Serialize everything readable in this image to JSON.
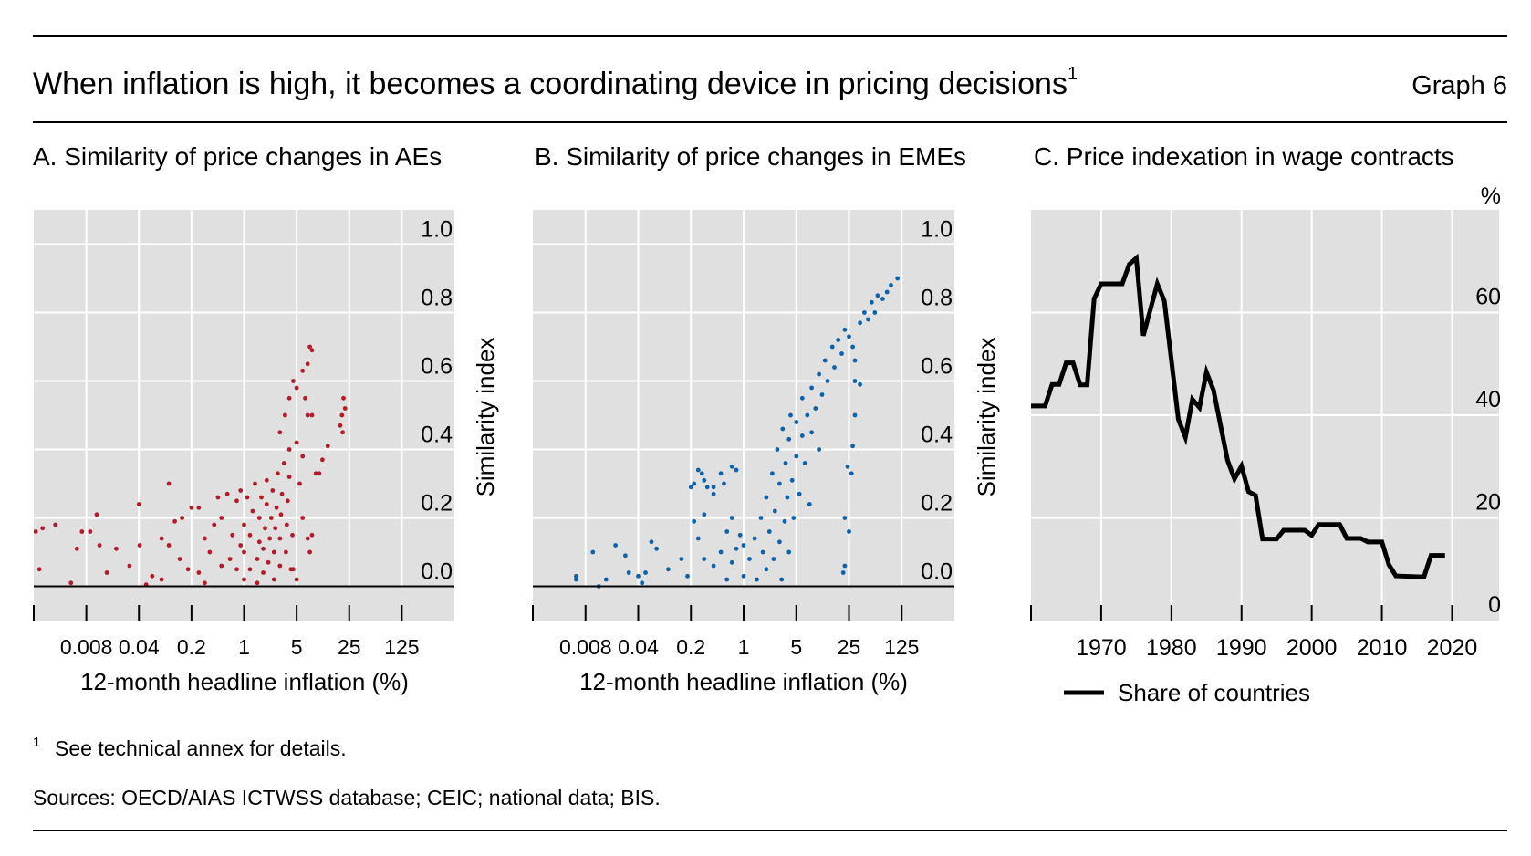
{
  "header": {
    "title": "When inflation is high, it becomes a coordinating device in pricing decisions",
    "title_footnote_marker": "1",
    "graph_number": "Graph 6"
  },
  "footer": {
    "footnote_marker": "1",
    "footnote": "See technical annex for details.",
    "sources": "Sources: OECD/AIAS ICTWSS database; CEIC; national data; BIS."
  },
  "colors": {
    "panel_a_points": "#b51a2a",
    "panel_b_points": "#0b62ad",
    "panel_c_line": "#000000",
    "plot_background": "#e0e0e0"
  },
  "chart_data": [
    {
      "type": "scatter",
      "title": "A. Similarity of price changes in AEs",
      "xlabel": "12-month headline inflation (%)",
      "ylabel": "Similarity index",
      "x_scale": "log base 5",
      "xlim": [
        0.0016,
        625
      ],
      "ylim": [
        -0.1,
        1.1
      ],
      "x_ticks": [
        "0.008",
        "0.04",
        "0.2",
        "1",
        "5",
        "25",
        "125"
      ],
      "x_tick_values": [
        0.008,
        0.04,
        0.2,
        1,
        5,
        25,
        125
      ],
      "y_ticks": [
        "0.0",
        "0.2",
        "0.4",
        "0.6",
        "0.8",
        "1.0"
      ],
      "y_tick_values": [
        0,
        0.2,
        0.4,
        0.6,
        0.8,
        1.0
      ],
      "grid": true,
      "color": "#b51a2a",
      "points": [
        [
          0.0017,
          0.16
        ],
        [
          0.0021,
          0.17
        ],
        [
          0.0031,
          0.18
        ],
        [
          0.0019,
          0.05
        ],
        [
          0.005,
          0.01
        ],
        [
          0.007,
          0.16
        ],
        [
          0.011,
          0.21
        ],
        [
          0.009,
          0.16
        ],
        [
          0.04,
          0.24
        ],
        [
          0.1,
          0.3
        ],
        [
          0.006,
          0.11
        ],
        [
          0.012,
          0.12
        ],
        [
          0.02,
          0.11
        ],
        [
          0.015,
          0.04
        ],
        [
          0.03,
          0.06
        ],
        [
          0.041,
          0.12
        ],
        [
          0.06,
          0.03
        ],
        [
          0.08,
          0.14
        ],
        [
          0.12,
          0.19
        ],
        [
          0.15,
          0.2
        ],
        [
          0.1,
          0.12
        ],
        [
          0.14,
          0.08
        ],
        [
          0.2,
          0.23
        ],
        [
          0.25,
          0.23
        ],
        [
          0.3,
          0.14
        ],
        [
          0.18,
          0.05
        ],
        [
          0.08,
          0.02
        ],
        [
          0.05,
          0.005
        ],
        [
          0.3,
          0.01
        ],
        [
          0.45,
          0.26
        ],
        [
          0.5,
          0.2
        ],
        [
          0.6,
          0.27
        ],
        [
          0.4,
          0.18
        ],
        [
          0.35,
          0.1
        ],
        [
          0.5,
          0.06
        ],
        [
          0.25,
          0.04
        ],
        [
          0.7,
          0.15
        ],
        [
          0.8,
          0.25
        ],
        [
          0.9,
          0.28
        ],
        [
          0.65,
          0.08
        ],
        [
          1,
          0.02
        ],
        [
          1,
          0.1
        ],
        [
          1,
          0.18
        ],
        [
          1.1,
          0.26
        ],
        [
          1.2,
          0.05
        ],
        [
          1.2,
          0.15
        ],
        [
          1.3,
          0.22
        ],
        [
          1.4,
          0.3
        ],
        [
          1.5,
          0.01
        ],
        [
          1.5,
          0.08
        ],
        [
          1.6,
          0.13
        ],
        [
          1.6,
          0.2
        ],
        [
          1.7,
          0.26
        ],
        [
          1.8,
          0.04
        ],
        [
          1.8,
          0.11
        ],
        [
          1.9,
          0.17
        ],
        [
          2,
          0.24
        ],
        [
          2,
          0.31
        ],
        [
          2.1,
          0.07
        ],
        [
          2.2,
          0.14
        ],
        [
          2.3,
          0.2
        ],
        [
          2.4,
          0.28
        ],
        [
          2.5,
          0.02
        ],
        [
          2.5,
          0.1
        ],
        [
          2.6,
          0.17
        ],
        [
          2.7,
          0.23
        ],
        [
          2.8,
          0.33
        ],
        [
          3,
          0.06
        ],
        [
          3,
          0.14
        ],
        [
          3.1,
          0.21
        ],
        [
          3.2,
          0.27
        ],
        [
          3.4,
          0.36
        ],
        [
          3.6,
          0.1
        ],
        [
          3.7,
          0.18
        ],
        [
          3.8,
          0.25
        ],
        [
          4,
          0.32
        ],
        [
          4.2,
          0.05
        ],
        [
          4.4,
          0.15
        ],
        [
          0.8,
          0.05
        ],
        [
          0.9,
          0.12
        ],
        [
          3,
          0.45
        ],
        [
          3.5,
          0.5
        ],
        [
          4,
          0.55
        ],
        [
          4.5,
          0.6
        ],
        [
          5,
          0.58
        ],
        [
          6,
          0.63
        ],
        [
          7,
          0.65
        ],
        [
          7.5,
          0.7
        ],
        [
          8,
          0.69
        ],
        [
          6.5,
          0.55
        ],
        [
          7,
          0.5
        ],
        [
          8,
          0.5
        ],
        [
          4,
          0.4
        ],
        [
          5,
          0.42
        ],
        [
          6,
          0.38
        ],
        [
          5.5,
          0.3
        ],
        [
          9,
          0.33
        ],
        [
          10,
          0.33
        ],
        [
          11,
          0.37
        ],
        [
          13,
          0.41
        ],
        [
          20,
          0.5
        ],
        [
          21,
          0.55
        ],
        [
          22,
          0.52
        ],
        [
          20.5,
          0.45
        ],
        [
          19,
          0.47
        ],
        [
          8,
          0.15
        ],
        [
          7,
          0.14
        ],
        [
          6,
          0.2
        ],
        [
          7.5,
          0.1
        ],
        [
          5,
          0.02
        ],
        [
          4.5,
          0.05
        ]
      ]
    },
    {
      "type": "scatter",
      "title": "B. Similarity of price changes in EMEs",
      "xlabel": "12-month headline inflation (%)",
      "ylabel": "Similarity index",
      "x_scale": "log base 5",
      "xlim": [
        0.0016,
        625
      ],
      "ylim": [
        -0.1,
        1.1
      ],
      "x_ticks": [
        "0.008",
        "0.04",
        "0.2",
        "1",
        "5",
        "25",
        "125"
      ],
      "x_tick_values": [
        0.008,
        0.04,
        0.2,
        1,
        5,
        25,
        125
      ],
      "y_ticks": [
        "0.0",
        "0.2",
        "0.4",
        "0.6",
        "0.8",
        "1.0"
      ],
      "y_tick_values": [
        0,
        0.2,
        0.4,
        0.6,
        0.8,
        1.0
      ],
      "grid": true,
      "color": "#0b62ad",
      "points": [
        [
          0.006,
          0.02
        ],
        [
          0.006,
          0.03
        ],
        [
          0.01,
          0.1
        ],
        [
          0.012,
          0.0
        ],
        [
          0.015,
          0.02
        ],
        [
          0.02,
          0.12
        ],
        [
          0.027,
          0.09
        ],
        [
          0.03,
          0.04
        ],
        [
          0.04,
          0.03
        ],
        [
          0.045,
          0.01
        ],
        [
          0.06,
          0.13
        ],
        [
          0.07,
          0.11
        ],
        [
          0.05,
          0.04
        ],
        [
          0.1,
          0.05
        ],
        [
          0.15,
          0.08
        ],
        [
          0.18,
          0.03
        ],
        [
          0.2,
          0.29
        ],
        [
          0.22,
          0.3
        ],
        [
          0.25,
          0.34
        ],
        [
          0.28,
          0.33
        ],
        [
          0.3,
          0.31
        ],
        [
          0.33,
          0.29
        ],
        [
          0.4,
          0.29
        ],
        [
          0.5,
          0.33
        ],
        [
          0.55,
          0.3
        ],
        [
          0.7,
          0.35
        ],
        [
          0.8,
          0.34
        ],
        [
          0.4,
          0.27
        ],
        [
          0.3,
          0.21
        ],
        [
          0.22,
          0.19
        ],
        [
          0.25,
          0.14
        ],
        [
          0.6,
          0.16
        ],
        [
          0.7,
          0.2
        ],
        [
          0.8,
          0.11
        ],
        [
          0.9,
          0.15
        ],
        [
          1,
          0.12
        ],
        [
          0.3,
          0.08
        ],
        [
          0.4,
          0.06
        ],
        [
          0.5,
          0.1
        ],
        [
          0.6,
          0.02
        ],
        [
          0.7,
          0.07
        ],
        [
          1,
          0.03
        ],
        [
          1.2,
          0.08
        ],
        [
          1.4,
          0.14
        ],
        [
          1.5,
          0.02
        ],
        [
          1.7,
          0.2
        ],
        [
          1.8,
          0.1
        ],
        [
          2,
          0.05
        ],
        [
          2,
          0.26
        ],
        [
          2.2,
          0.16
        ],
        [
          2.4,
          0.33
        ],
        [
          2.5,
          0.08
        ],
        [
          2.6,
          0.22
        ],
        [
          2.8,
          0.4
        ],
        [
          3,
          0.13
        ],
        [
          3,
          0.3
        ],
        [
          3.2,
          0.02
        ],
        [
          3.3,
          0.46
        ],
        [
          3.5,
          0.19
        ],
        [
          3.6,
          0.36
        ],
        [
          3.8,
          0.26
        ],
        [
          4,
          0.1
        ],
        [
          4,
          0.43
        ],
        [
          4.2,
          0.5
        ],
        [
          4.4,
          0.31
        ],
        [
          4.6,
          0.2
        ],
        [
          5,
          0.38
        ],
        [
          5,
          0.48
        ],
        [
          5.5,
          0.27
        ],
        [
          6,
          0.44
        ],
        [
          6,
          0.55
        ],
        [
          6.5,
          0.36
        ],
        [
          7,
          0.5
        ],
        [
          7.5,
          0.24
        ],
        [
          8,
          0.45
        ],
        [
          8,
          0.58
        ],
        [
          9,
          0.52
        ],
        [
          10,
          0.62
        ],
        [
          10,
          0.4
        ],
        [
          11,
          0.56
        ],
        [
          12,
          0.66
        ],
        [
          13,
          0.6
        ],
        [
          15,
          0.7
        ],
        [
          16,
          0.64
        ],
        [
          18,
          0.72
        ],
        [
          20,
          0.68
        ],
        [
          22,
          0.75
        ],
        [
          25,
          0.73
        ],
        [
          28,
          0.7
        ],
        [
          30,
          0.66
        ],
        [
          35,
          0.77
        ],
        [
          40,
          0.8
        ],
        [
          45,
          0.78
        ],
        [
          50,
          0.83
        ],
        [
          55,
          0.8
        ],
        [
          60,
          0.85
        ],
        [
          70,
          0.84
        ],
        [
          80,
          0.86
        ],
        [
          90,
          0.88
        ],
        [
          110,
          0.9
        ],
        [
          22,
          0.2
        ],
        [
          25,
          0.16
        ],
        [
          21,
          0.04
        ],
        [
          22,
          0.06
        ],
        [
          27,
          0.33
        ],
        [
          24,
          0.35
        ],
        [
          28,
          0.41
        ],
        [
          30,
          0.5
        ],
        [
          30,
          0.6
        ],
        [
          35,
          0.59
        ]
      ]
    },
    {
      "type": "line",
      "title": "C. Price indexation in wage contracts",
      "y_unit": "%",
      "xlim": [
        1960,
        2026.7
      ],
      "ylim": [
        0,
        80
      ],
      "x_ticks": [
        "1970",
        "1980",
        "1990",
        "2000",
        "2010",
        "2020"
      ],
      "x_tick_values": [
        1970,
        1980,
        1990,
        2000,
        2010,
        2020
      ],
      "y_ticks": [
        "0",
        "20",
        "40",
        "60"
      ],
      "y_tick_values": [
        0,
        20,
        40,
        60
      ],
      "grid": true,
      "legend_position": "bottom",
      "series": [
        {
          "name": "Share of countries",
          "color": "#000000",
          "x": [
            1960,
            1962,
            1963,
            1964,
            1965,
            1966,
            1967,
            1968,
            1969,
            1970,
            1973,
            1974,
            1975,
            1976,
            1978,
            1979,
            1981,
            1982,
            1983,
            1984,
            1985,
            1986,
            1988,
            1989,
            1990,
            1991,
            1992,
            1993,
            1995,
            1996,
            1999,
            2000,
            2001,
            2004,
            2005,
            2007,
            2008,
            2010,
            2011,
            2012,
            2016,
            2017,
            2019
          ],
          "y": [
            41.8,
            41.8,
            46,
            46,
            50.2,
            50.2,
            45.9,
            45.9,
            62.7,
            65.6,
            65.6,
            69.4,
            70.6,
            55.5,
            65.6,
            62.3,
            39.2,
            35.7,
            43.1,
            41.5,
            48.4,
            44.9,
            31.2,
            27.6,
            30.1,
            25.1,
            24.4,
            15.9,
            15.9,
            17.6,
            17.6,
            16.6,
            18.7,
            18.7,
            16,
            16,
            15.3,
            15.3,
            10.9,
            8.7,
            8.5,
            12.7,
            12.7
          ]
        }
      ]
    }
  ]
}
